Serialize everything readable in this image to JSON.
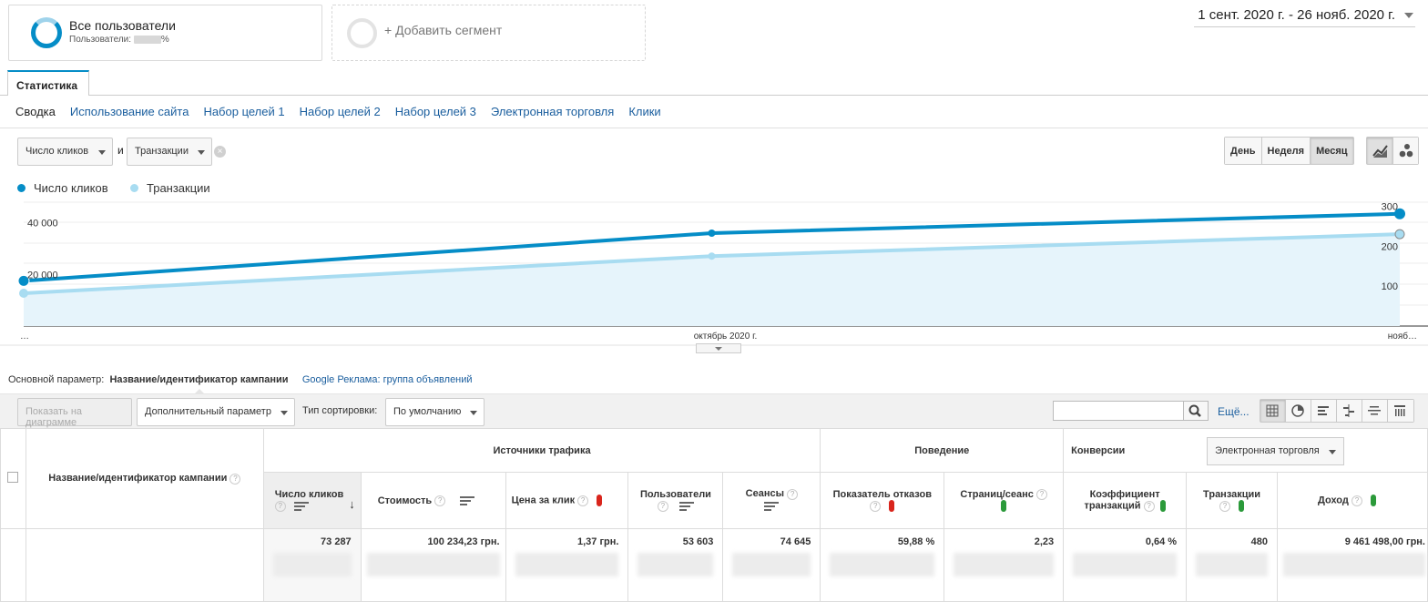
{
  "segments": {
    "active_title": "Все пользователи",
    "active_sub": "Пользователи:",
    "active_sub_suffix": "%",
    "add_label": "+ Добавить сегмент"
  },
  "date_range": "1 сент. 2020 г. - 26 нояб. 2020 г.",
  "tabs": {
    "main": "Статистика"
  },
  "subnav": [
    "Сводка",
    "Использование сайта",
    "Набор целей 1",
    "Набор целей 2",
    "Набор целей 3",
    "Электронная торговля",
    "Клики"
  ],
  "metric_selector": {
    "first": "Число кликов",
    "and": "и",
    "second": "Транзакции"
  },
  "period_buttons": [
    "День",
    "Неделя",
    "Месяц"
  ],
  "colors": {
    "primary": "#058dc7",
    "secondary": "#a8dcf1",
    "link": "#1a5e9e"
  },
  "chart_data": {
    "type": "line",
    "x": [
      "…",
      "октябрь 2020 г.",
      "нояб…"
    ],
    "series": [
      {
        "name": "Число кликов",
        "axis": "left",
        "values": [
          17500,
          36000,
          43500
        ]
      },
      {
        "name": "Транзакции",
        "axis": "right",
        "values": [
          82,
          175,
          230
        ]
      }
    ],
    "y_left_ticks": [
      "40 000",
      "20 000"
    ],
    "y_right_ticks": [
      "300",
      "200",
      "100"
    ],
    "ylim_left": [
      0,
      48000
    ],
    "ylim_right": [
      0,
      310
    ]
  },
  "primary_dimension": {
    "label": "Основной параметр:",
    "active": "Название/идентификатор кампании",
    "other": "Google Реклама: группа объявлений"
  },
  "toolbar": {
    "plot_rows": "Показать на диаграмме",
    "secondary_dim": "Дополнительный параметр",
    "sort_label": "Тип сортировки:",
    "sort_value": "По умолчанию",
    "more": "Ещё..."
  },
  "table": {
    "dim_header": "Название/идентификатор кампании",
    "groups": {
      "acquisition": "Источники трафика",
      "behavior": "Поведение",
      "conversions": "Конверсии",
      "conversion_select": "Электронная торговля"
    },
    "columns": [
      "Число кликов",
      "Стоимость",
      "Цена за клик",
      "Пользователи",
      "Сеансы",
      "Показатель отказов",
      "Страниц/сеанс",
      "Коэффициент транзакций",
      "Транзакции",
      "Доход"
    ],
    "totals": [
      "73 287",
      "100 234,23 грн.",
      "1,37 грн.",
      "53 603",
      "74 645",
      "59,88 %",
      "2,23",
      "0,64 %",
      "480",
      "9 461 498,00 грн."
    ]
  }
}
